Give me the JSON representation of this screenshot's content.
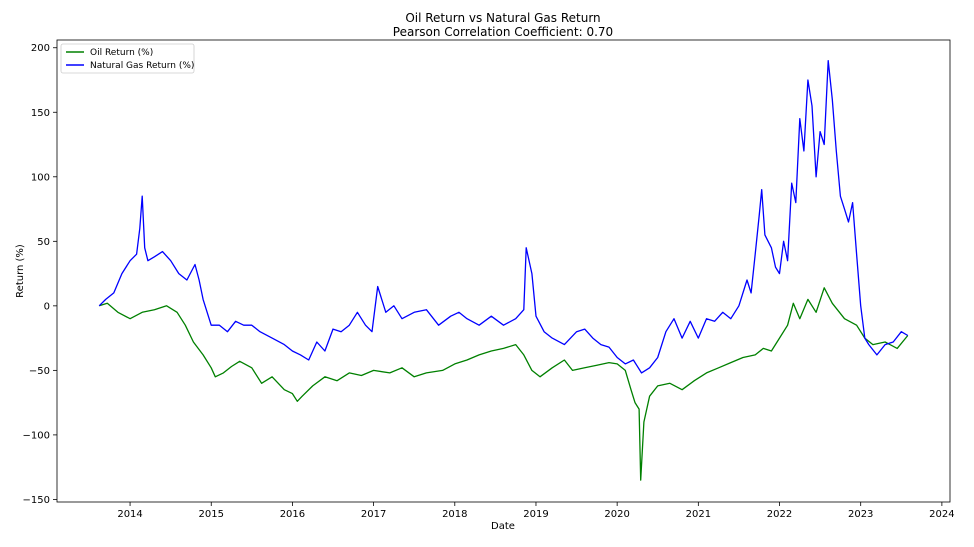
{
  "chart_data": {
    "type": "line",
    "title": "Oil Return vs Natural Gas Return",
    "subtitle": "Pearson Correlation Coefficient: 0.70",
    "xlabel": "Date",
    "ylabel": "Return (%)",
    "xlim": [
      2013.1,
      2024.1
    ],
    "ylim": [
      -152,
      206
    ],
    "x_ticks": [
      2014,
      2015,
      2016,
      2017,
      2018,
      2019,
      2020,
      2021,
      2022,
      2023,
      2024
    ],
    "x_tick_labels": [
      "2014",
      "2015",
      "2016",
      "2017",
      "2018",
      "2019",
      "2020",
      "2021",
      "2022",
      "2023",
      "2024"
    ],
    "y_ticks": [
      -150,
      -100,
      -50,
      0,
      50,
      100,
      150,
      200
    ],
    "y_tick_labels": [
      "−150",
      "−100",
      "−50",
      "0",
      "50",
      "100",
      "150",
      "200"
    ],
    "grid": false,
    "legend_position": "top-left",
    "series": [
      {
        "name": "Oil Return (%)",
        "color": "#008000",
        "x": [
          2013.62,
          2013.72,
          2013.85,
          2014.0,
          2014.15,
          2014.3,
          2014.45,
          2014.58,
          2014.68,
          2014.78,
          2014.9,
          2015.0,
          2015.05,
          2015.15,
          2015.25,
          2015.35,
          2015.5,
          2015.62,
          2015.75,
          2015.9,
          2016.0,
          2016.06,
          2016.12,
          2016.25,
          2016.4,
          2016.55,
          2016.7,
          2016.85,
          2017.0,
          2017.2,
          2017.35,
          2017.5,
          2017.65,
          2017.85,
          2018.0,
          2018.15,
          2018.3,
          2018.45,
          2018.6,
          2018.75,
          2018.85,
          2018.95,
          2019.05,
          2019.2,
          2019.35,
          2019.45,
          2019.6,
          2019.75,
          2019.9,
          2020.0,
          2020.1,
          2020.17,
          2020.22,
          2020.27,
          2020.29,
          2020.33,
          2020.4,
          2020.5,
          2020.65,
          2020.8,
          2020.95,
          2021.1,
          2021.25,
          2021.4,
          2021.55,
          2021.7,
          2021.8,
          2021.9,
          2022.0,
          2022.1,
          2022.17,
          2022.25,
          2022.35,
          2022.45,
          2022.55,
          2022.65,
          2022.8,
          2022.95,
          2023.05,
          2023.15,
          2023.3,
          2023.45,
          2023.58
        ],
        "y": [
          0,
          2,
          -5,
          -10,
          -5,
          -3,
          0,
          -5,
          -15,
          -28,
          -38,
          -48,
          -55,
          -52,
          -47,
          -43,
          -48,
          -60,
          -55,
          -65,
          -68,
          -74,
          -70,
          -62,
          -55,
          -58,
          -52,
          -54,
          -50,
          -52,
          -48,
          -55,
          -52,
          -50,
          -45,
          -42,
          -38,
          -35,
          -33,
          -30,
          -38,
          -50,
          -55,
          -48,
          -42,
          -50,
          -48,
          -46,
          -44,
          -45,
          -50,
          -65,
          -75,
          -80,
          -135,
          -90,
          -70,
          -62,
          -60,
          -65,
          -58,
          -52,
          -48,
          -44,
          -40,
          -38,
          -33,
          -35,
          -25,
          -15,
          2,
          -10,
          5,
          -5,
          14,
          2,
          -10,
          -15,
          -25,
          -30,
          -28,
          -33,
          -23
        ]
      },
      {
        "name": "Natural Gas Return (%)",
        "color": "#0000ff",
        "x": [
          2013.62,
          2013.7,
          2013.8,
          2013.9,
          2014.0,
          2014.08,
          2014.12,
          2014.15,
          2014.18,
          2014.22,
          2014.3,
          2014.4,
          2014.5,
          2014.6,
          2014.7,
          2014.8,
          2014.85,
          2014.9,
          2015.0,
          2015.1,
          2015.2,
          2015.3,
          2015.4,
          2015.5,
          2015.6,
          2015.75,
          2015.9,
          2016.0,
          2016.1,
          2016.2,
          2016.3,
          2016.4,
          2016.5,
          2016.6,
          2016.7,
          2016.8,
          2016.9,
          2016.98,
          2017.05,
          2017.15,
          2017.25,
          2017.35,
          2017.5,
          2017.65,
          2017.8,
          2017.95,
          2018.05,
          2018.15,
          2018.3,
          2018.45,
          2018.6,
          2018.75,
          2018.85,
          2018.88,
          2018.95,
          2019.0,
          2019.1,
          2019.2,
          2019.35,
          2019.5,
          2019.6,
          2019.7,
          2019.8,
          2019.9,
          2020.0,
          2020.1,
          2020.2,
          2020.3,
          2020.4,
          2020.5,
          2020.6,
          2020.7,
          2020.8,
          2020.9,
          2021.0,
          2021.1,
          2021.2,
          2021.3,
          2021.4,
          2021.5,
          2021.6,
          2021.65,
          2021.7,
          2021.75,
          2021.78,
          2021.82,
          2021.9,
          2021.95,
          2022.0,
          2022.05,
          2022.1,
          2022.15,
          2022.2,
          2022.25,
          2022.3,
          2022.35,
          2022.4,
          2022.45,
          2022.5,
          2022.55,
          2022.6,
          2022.65,
          2022.7,
          2022.75,
          2022.8,
          2022.85,
          2022.9,
          2022.95,
          2023.0,
          2023.05,
          2023.1,
          2023.2,
          2023.3,
          2023.4,
          2023.5,
          2023.58
        ],
        "y": [
          0,
          5,
          10,
          25,
          35,
          40,
          60,
          85,
          45,
          35,
          38,
          42,
          35,
          25,
          20,
          32,
          20,
          5,
          -15,
          -15,
          -20,
          -12,
          -15,
          -15,
          -20,
          -25,
          -30,
          -35,
          -38,
          -42,
          -28,
          -35,
          -18,
          -20,
          -15,
          -5,
          -15,
          -20,
          15,
          -5,
          0,
          -10,
          -5,
          -3,
          -15,
          -8,
          -5,
          -10,
          -15,
          -8,
          -15,
          -10,
          -3,
          45,
          25,
          -8,
          -20,
          -25,
          -30,
          -20,
          -18,
          -25,
          -30,
          -32,
          -40,
          -45,
          -42,
          -52,
          -48,
          -40,
          -20,
          -10,
          -25,
          -12,
          -25,
          -10,
          -12,
          -5,
          -10,
          0,
          20,
          10,
          40,
          70,
          90,
          55,
          45,
          30,
          25,
          50,
          35,
          95,
          80,
          145,
          120,
          175,
          155,
          100,
          135,
          125,
          190,
          160,
          120,
          85,
          75,
          65,
          80,
          40,
          0,
          -25,
          -30,
          -38,
          -30,
          -28,
          -20,
          -23
        ]
      }
    ]
  }
}
